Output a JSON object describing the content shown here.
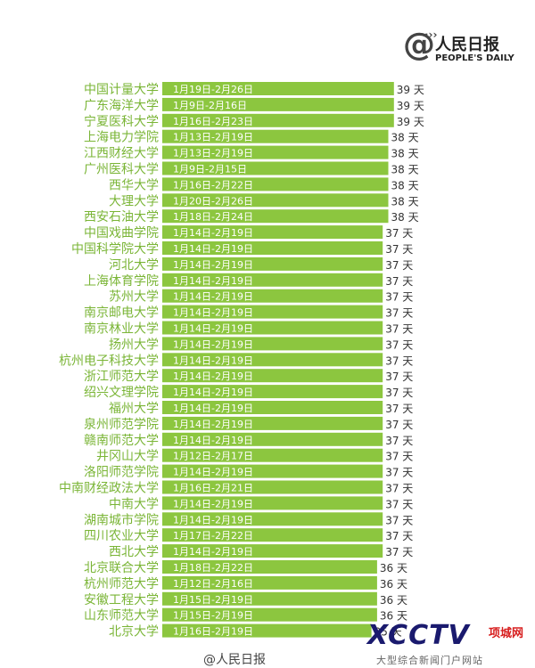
{
  "logo": {
    "at": "@",
    "cn": "人民日报",
    "en": "PEOPLE'S DAILY"
  },
  "watermarks": {
    "weibo": "@人民日报",
    "xcctv": "XCCTV",
    "brand": "项城网",
    "site": "大型综合新闻门户网站"
  },
  "colors": {
    "bar": "#8cc63f",
    "bar_text": "#ffffff",
    "label": "#7ab536",
    "value": "#333333",
    "background": "#ffffff"
  },
  "chart_data": {
    "type": "bar",
    "orientation": "horizontal",
    "unit": "天",
    "categories": [
      "中国计量大学",
      "广东海洋大学",
      "宁夏医科大学",
      "上海电力学院",
      "江西财经大学",
      "广州医科大学",
      "西华大学",
      "大理大学",
      "西安石油大学",
      "中国戏曲学院",
      "中国科学院大学",
      "河北大学",
      "上海体育学院",
      "苏州大学",
      "南京邮电大学",
      "南京林业大学",
      "扬州大学",
      "杭州电子科技大学",
      "浙江师范大学",
      "绍兴文理学院",
      "福州大学",
      "泉州师范学院",
      "赣南师范大学",
      "井冈山大学",
      "洛阳师范学院",
      "中南财经政法大学",
      "中南大学",
      "湖南城市学院",
      "四川农业大学",
      "西北大学",
      "北京联合大学",
      "杭州师范大学",
      "安徽工程大学",
      "山东师范大学",
      "北京大学"
    ],
    "periods": [
      "1月19日-2月26日",
      "1月9日-2月16日",
      "1月16日-2月23日",
      "1月13日-2月19日",
      "1月13日-2月19日",
      "1月9日-2月15日",
      "1月16日-2月22日",
      "1月20日-2月26日",
      "1月18日-2月24日",
      "1月14日-2月19日",
      "1月14日-2月19日",
      "1月14日-2月19日",
      "1月14日-2月19日",
      "1月14日-2月19日",
      "1月14日-2月19日",
      "1月14日-2月19日",
      "1月14日-2月19日",
      "1月14日-2月19日",
      "1月14日-2月19日",
      "1月14日-2月19日",
      "1月14日-2月19日",
      "1月14日-2月19日",
      "1月14日-2月19日",
      "1月12日-2月17日",
      "1月14日-2月19日",
      "1月16日-2月21日",
      "1月14日-2月19日",
      "1月14日-2月19日",
      "1月17日-2月22日",
      "1月14日-2月19日",
      "1月18日-2月22日",
      "1月12日-2月16日",
      "1月15日-2月19日",
      "1月15日-2月19日",
      "1月16日-2月19日"
    ],
    "values": [
      39,
      39,
      39,
      38,
      38,
      38,
      38,
      38,
      38,
      37,
      37,
      37,
      37,
      37,
      37,
      37,
      37,
      37,
      37,
      37,
      37,
      37,
      37,
      37,
      37,
      37,
      37,
      37,
      37,
      37,
      36,
      36,
      36,
      36,
      35
    ],
    "value_labels": [
      "39 天",
      "39 天",
      "39 天",
      "38 天",
      "38 天",
      "38 天",
      "38 天",
      "38 天",
      "38 天",
      "37 天",
      "37 天",
      "37 天",
      "37 天",
      "37 天",
      "37 天",
      "37 天",
      "37 天",
      "37 天",
      "37 天",
      "37 天",
      "37 天",
      "37 天",
      "37 天",
      "37 天",
      "37 天",
      "37 天",
      "37 天",
      "37 天",
      "37 天",
      "37 天",
      "36 天",
      "36 天",
      "36 天",
      "36 天",
      "35 天"
    ]
  }
}
